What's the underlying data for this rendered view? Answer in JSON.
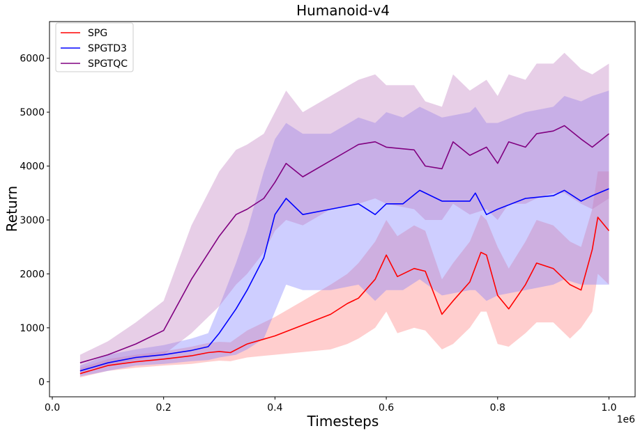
{
  "chart_data": {
    "type": "line",
    "title": "Humanoid-v4",
    "xlabel": "Timesteps",
    "ylabel": "Return",
    "x_scale_label": "1e6",
    "xlim": [
      -0.005,
      1.047
    ],
    "ylim": [
      -280,
      6680
    ],
    "xticks": [
      0.0,
      0.2,
      0.4,
      0.6,
      0.8,
      1.0
    ],
    "xtick_labels": [
      "0.0",
      "0.2",
      "0.4",
      "0.6",
      "0.8",
      "1.0"
    ],
    "yticks": [
      0,
      1000,
      2000,
      3000,
      4000,
      5000,
      6000
    ],
    "ytick_labels": [
      "0",
      "1000",
      "2000",
      "3000",
      "4000",
      "5000",
      "6000"
    ],
    "grid": false,
    "legend_position": "top-left",
    "series": [
      {
        "name": "SPG",
        "color": "#ff0000",
        "band_color": "#ff7f7f",
        "x": [
          0.05,
          0.1,
          0.15,
          0.2,
          0.25,
          0.28,
          0.3,
          0.32,
          0.35,
          0.4,
          0.45,
          0.5,
          0.53,
          0.55,
          0.58,
          0.6,
          0.62,
          0.65,
          0.67,
          0.7,
          0.72,
          0.75,
          0.77,
          0.78,
          0.8,
          0.82,
          0.85,
          0.87,
          0.9,
          0.93,
          0.95,
          0.97,
          0.98,
          1.0
        ],
        "mean": [
          150,
          300,
          370,
          420,
          480,
          540,
          560,
          540,
          700,
          850,
          1050,
          1250,
          1450,
          1550,
          1900,
          2350,
          1950,
          2100,
          2050,
          1250,
          1500,
          1850,
          2400,
          2350,
          1600,
          1350,
          1800,
          2200,
          2100,
          1800,
          1700,
          2450,
          3050,
          2800
        ],
        "lower": [
          80,
          200,
          260,
          300,
          330,
          370,
          390,
          380,
          450,
          500,
          550,
          600,
          700,
          800,
          1000,
          1300,
          900,
          1000,
          950,
          600,
          700,
          1000,
          1300,
          1300,
          700,
          650,
          900,
          1100,
          1100,
          800,
          1000,
          1300,
          2000,
          1800
        ],
        "upper": [
          250,
          420,
          500,
          560,
          650,
          720,
          740,
          730,
          950,
          1200,
          1500,
          1800,
          2000,
          2200,
          2600,
          3000,
          2700,
          2900,
          2800,
          1900,
          2200,
          2600,
          3100,
          3000,
          2500,
          2100,
          2600,
          3000,
          2900,
          2600,
          2500,
          3200,
          3900,
          3900
        ]
      },
      {
        "name": "SPGTD3",
        "color": "#0000ff",
        "band_color": "#7f7fff",
        "x": [
          0.05,
          0.1,
          0.15,
          0.2,
          0.25,
          0.28,
          0.3,
          0.33,
          0.35,
          0.38,
          0.4,
          0.42,
          0.45,
          0.5,
          0.55,
          0.58,
          0.6,
          0.63,
          0.66,
          0.7,
          0.75,
          0.76,
          0.78,
          0.8,
          0.85,
          0.9,
          0.92,
          0.95,
          0.97,
          1.0
        ],
        "mean": [
          200,
          350,
          450,
          500,
          580,
          650,
          900,
          1350,
          1700,
          2300,
          3100,
          3400,
          3100,
          3200,
          3300,
          3100,
          3300,
          3300,
          3550,
          3350,
          3350,
          3500,
          3100,
          3200,
          3400,
          3450,
          3550,
          3350,
          3450,
          3580
        ],
        "lower": [
          100,
          200,
          300,
          330,
          380,
          400,
          450,
          500,
          600,
          800,
          1300,
          1800,
          1700,
          1700,
          1800,
          1500,
          1700,
          1700,
          1900,
          1600,
          1700,
          1700,
          1500,
          1600,
          1700,
          1800,
          1900,
          1800,
          1800,
          1800
        ],
        "upper": [
          300,
          500,
          600,
          680,
          800,
          900,
          1400,
          2200,
          2800,
          3900,
          4500,
          4800,
          4600,
          4600,
          4900,
          4800,
          5000,
          4900,
          5100,
          4900,
          5000,
          5100,
          4800,
          4800,
          5000,
          5100,
          5300,
          5200,
          5300,
          5400
        ]
      },
      {
        "name": "SPGTQC",
        "color": "#800080",
        "band_color": "#bf7fbf",
        "x": [
          0.05,
          0.1,
          0.15,
          0.2,
          0.25,
          0.3,
          0.33,
          0.35,
          0.38,
          0.4,
          0.42,
          0.45,
          0.5,
          0.55,
          0.58,
          0.6,
          0.65,
          0.67,
          0.7,
          0.72,
          0.75,
          0.78,
          0.8,
          0.82,
          0.85,
          0.87,
          0.9,
          0.92,
          0.95,
          0.97,
          1.0
        ],
        "mean": [
          350,
          500,
          700,
          950,
          1900,
          2700,
          3100,
          3200,
          3400,
          3700,
          4050,
          3800,
          4100,
          4400,
          4450,
          4350,
          4300,
          4000,
          3950,
          4450,
          4200,
          4350,
          4050,
          4450,
          4350,
          4600,
          4650,
          4750,
          4500,
          4350,
          4600
        ],
        "lower": [
          200,
          300,
          400,
          500,
          900,
          1400,
          1800,
          2000,
          2400,
          2800,
          3000,
          2900,
          3200,
          3300,
          3400,
          3300,
          3200,
          3000,
          3000,
          3300,
          3100,
          3200,
          3000,
          3300,
          3300,
          3400,
          3500,
          3500,
          3300,
          3200,
          3400
        ],
        "upper": [
          500,
          750,
          1100,
          1500,
          2900,
          3900,
          4300,
          4400,
          4600,
          5000,
          5400,
          5000,
          5300,
          5600,
          5700,
          5500,
          5500,
          5200,
          5100,
          5700,
          5400,
          5600,
          5300,
          5700,
          5600,
          5900,
          5900,
          6100,
          5800,
          5700,
          5900
        ]
      }
    ]
  }
}
